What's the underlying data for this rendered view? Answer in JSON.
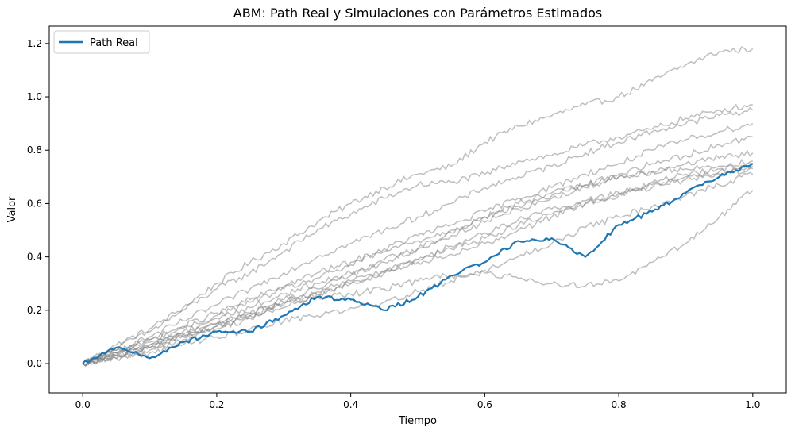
{
  "chart_data": {
    "type": "line",
    "title": "ABM: Path Real y Simulaciones con Parámetros Estimados",
    "xlabel": "Tiempo",
    "ylabel": "Valor",
    "xlim": [
      -0.05,
      1.05
    ],
    "ylim": [
      -0.11,
      1.265
    ],
    "x_ticks": [
      0.0,
      0.2,
      0.4,
      0.6,
      0.8,
      1.0
    ],
    "x_tick_labels": [
      "0.0",
      "0.2",
      "0.4",
      "0.6",
      "0.8",
      "1.0"
    ],
    "y_ticks": [
      0.0,
      0.2,
      0.4,
      0.6,
      0.8,
      1.0,
      1.2
    ],
    "y_tick_labels": [
      "0.0",
      "0.2",
      "0.4",
      "0.6",
      "0.8",
      "1.0",
      "1.2"
    ],
    "grid": false,
    "legend": {
      "position": "top-left",
      "entries": [
        "Path Real"
      ]
    },
    "x": [
      0.0,
      0.05,
      0.1,
      0.15,
      0.2,
      0.25,
      0.3,
      0.35,
      0.4,
      0.45,
      0.5,
      0.55,
      0.6,
      0.65,
      0.7,
      0.75,
      0.8,
      0.85,
      0.9,
      0.95,
      1.0
    ],
    "series": [
      {
        "name": "Path Real",
        "role": "real",
        "color": "#1f77b4",
        "values": [
          0.0,
          0.06,
          0.02,
          0.08,
          0.12,
          0.12,
          0.18,
          0.25,
          0.24,
          0.2,
          0.25,
          0.33,
          0.38,
          0.46,
          0.47,
          0.4,
          0.52,
          0.57,
          0.64,
          0.7,
          0.75
        ]
      },
      {
        "role": "simulation",
        "color": "#808080",
        "values": [
          0.0,
          0.07,
          0.13,
          0.21,
          0.3,
          0.38,
          0.45,
          0.53,
          0.6,
          0.66,
          0.71,
          0.74,
          0.83,
          0.89,
          0.93,
          0.97,
          1.0,
          1.06,
          1.12,
          1.17,
          1.18
        ]
      },
      {
        "role": "simulation",
        "color": "#808080",
        "values": [
          0.0,
          0.06,
          0.12,
          0.2,
          0.28,
          0.34,
          0.42,
          0.5,
          0.56,
          0.62,
          0.67,
          0.68,
          0.71,
          0.76,
          0.78,
          0.82,
          0.85,
          0.88,
          0.92,
          0.95,
          0.97
        ]
      },
      {
        "role": "simulation",
        "color": "#808080",
        "values": [
          0.0,
          0.05,
          0.1,
          0.16,
          0.22,
          0.28,
          0.34,
          0.4,
          0.45,
          0.5,
          0.55,
          0.6,
          0.66,
          0.7,
          0.74,
          0.79,
          0.83,
          0.87,
          0.9,
          0.93,
          0.95
        ]
      },
      {
        "role": "simulation",
        "color": "#808080",
        "values": [
          0.0,
          0.04,
          0.09,
          0.14,
          0.19,
          0.24,
          0.29,
          0.34,
          0.38,
          0.43,
          0.48,
          0.52,
          0.57,
          0.62,
          0.66,
          0.71,
          0.75,
          0.8,
          0.84,
          0.87,
          0.9
        ]
      },
      {
        "role": "simulation",
        "color": "#808080",
        "values": [
          0.0,
          0.05,
          0.09,
          0.13,
          0.18,
          0.23,
          0.28,
          0.32,
          0.37,
          0.42,
          0.46,
          0.5,
          0.55,
          0.59,
          0.63,
          0.67,
          0.71,
          0.75,
          0.78,
          0.82,
          0.85
        ]
      },
      {
        "role": "simulation",
        "color": "#808080",
        "values": [
          0.0,
          0.03,
          0.07,
          0.12,
          0.17,
          0.21,
          0.26,
          0.3,
          0.34,
          0.39,
          0.43,
          0.48,
          0.53,
          0.58,
          0.62,
          0.66,
          0.7,
          0.72,
          0.75,
          0.77,
          0.79
        ]
      },
      {
        "role": "simulation",
        "color": "#808080",
        "values": [
          0.0,
          0.04,
          0.08,
          0.11,
          0.15,
          0.19,
          0.24,
          0.28,
          0.33,
          0.38,
          0.43,
          0.49,
          0.55,
          0.6,
          0.64,
          0.67,
          0.7,
          0.72,
          0.73,
          0.74,
          0.76
        ]
      },
      {
        "role": "simulation",
        "color": "#808080",
        "values": [
          0.0,
          0.02,
          0.05,
          0.09,
          0.13,
          0.17,
          0.21,
          0.26,
          0.3,
          0.34,
          0.39,
          0.43,
          0.47,
          0.52,
          0.56,
          0.6,
          0.63,
          0.66,
          0.69,
          0.71,
          0.73
        ]
      },
      {
        "role": "simulation",
        "color": "#808080",
        "values": [
          0.0,
          0.03,
          0.06,
          0.1,
          0.14,
          0.18,
          0.22,
          0.26,
          0.3,
          0.34,
          0.39,
          0.44,
          0.49,
          0.54,
          0.58,
          0.61,
          0.64,
          0.67,
          0.7,
          0.72,
          0.74
        ]
      },
      {
        "role": "simulation",
        "color": "#808080",
        "values": [
          0.0,
          0.04,
          0.07,
          0.11,
          0.15,
          0.19,
          0.23,
          0.27,
          0.31,
          0.35,
          0.38,
          0.41,
          0.45,
          0.5,
          0.55,
          0.6,
          0.64,
          0.68,
          0.71,
          0.73,
          0.75
        ]
      },
      {
        "role": "simulation",
        "color": "#808080",
        "values": [
          0.0,
          0.02,
          0.04,
          0.07,
          0.1,
          0.13,
          0.16,
          0.18,
          0.21,
          0.23,
          0.27,
          0.31,
          0.35,
          0.4,
          0.45,
          0.51,
          0.55,
          0.59,
          0.63,
          0.67,
          0.71
        ]
      },
      {
        "role": "simulation",
        "color": "#808080",
        "values": [
          0.0,
          0.03,
          0.06,
          0.1,
          0.14,
          0.18,
          0.23,
          0.25,
          0.26,
          0.28,
          0.31,
          0.33,
          0.34,
          0.32,
          0.3,
          0.29,
          0.31,
          0.38,
          0.45,
          0.55,
          0.65
        ]
      }
    ]
  }
}
